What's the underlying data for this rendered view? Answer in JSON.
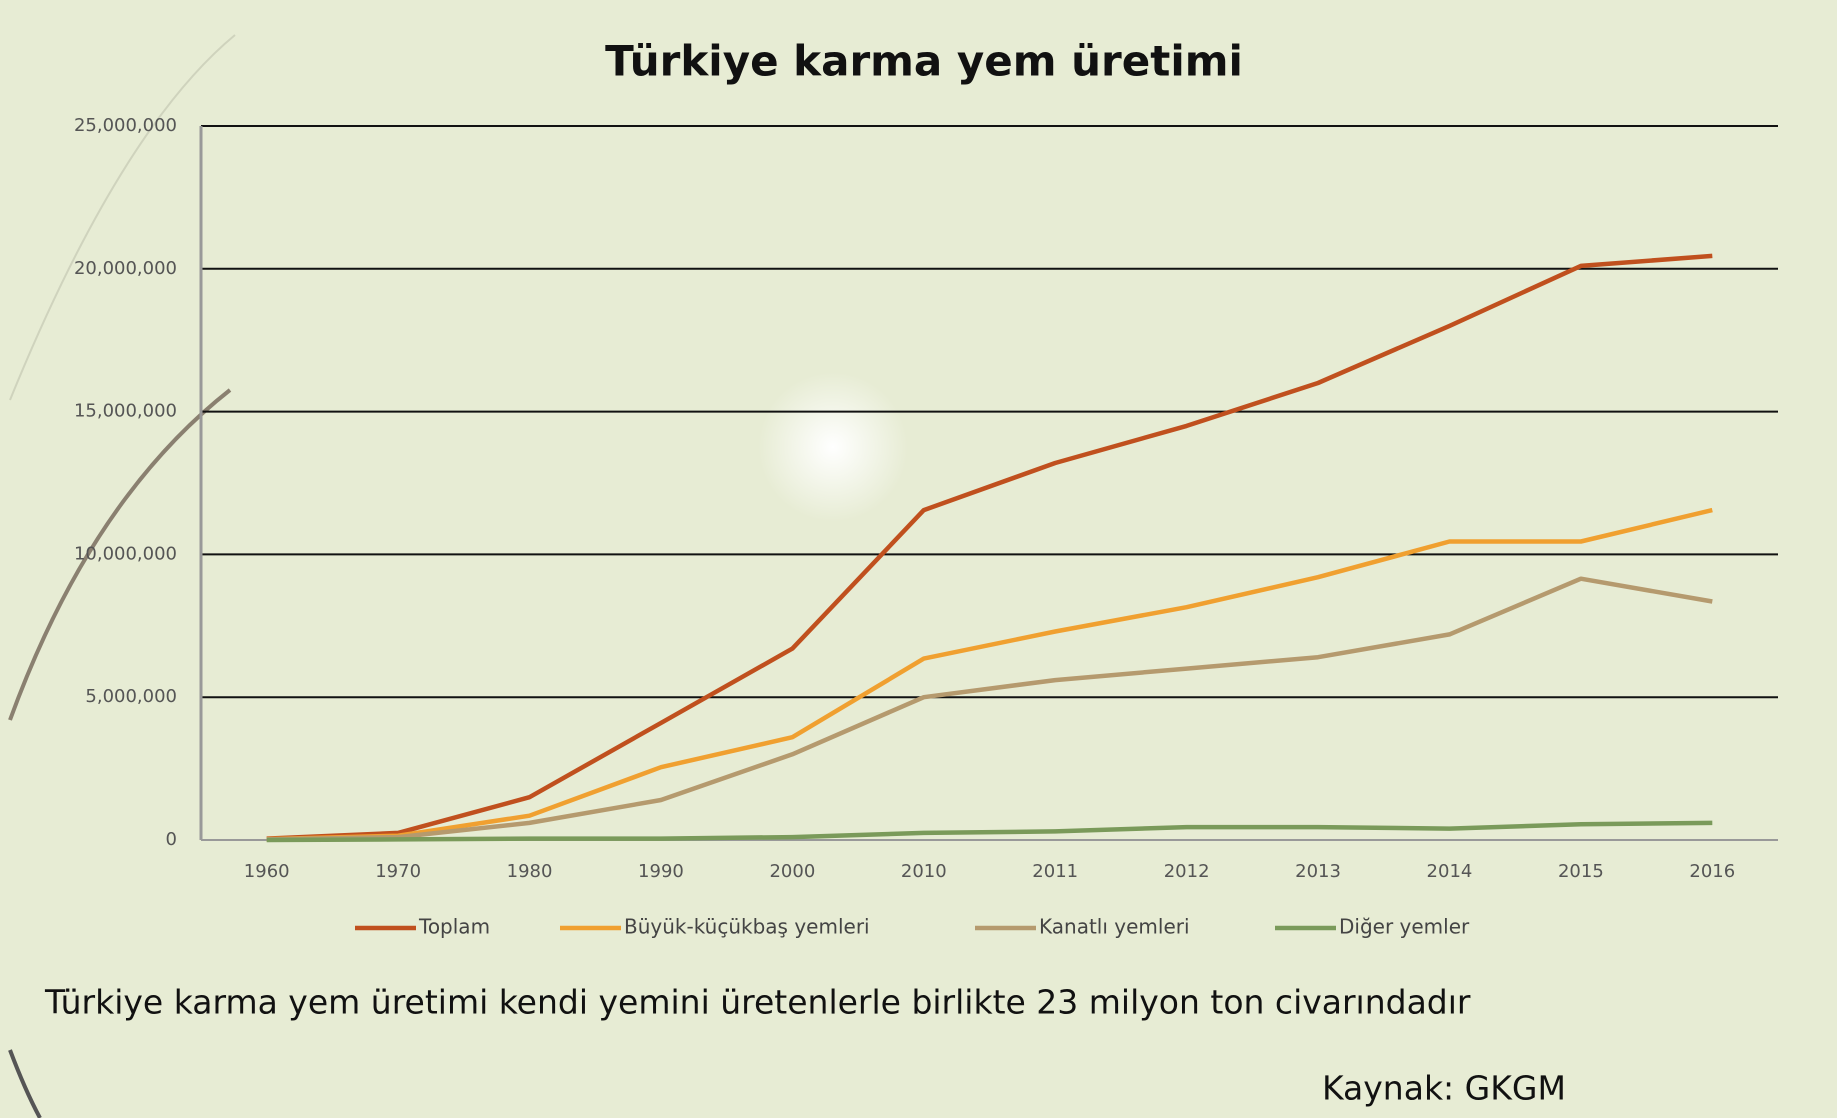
{
  "chart_data": {
    "type": "line",
    "title": "Türkiye karma yem üretimi",
    "categories": [
      "1960",
      "1970",
      "1980",
      "1990",
      "2000",
      "2010",
      "2011",
      "2012",
      "2013",
      "2014",
      "2015",
      "2016"
    ],
    "series": [
      {
        "name": "Toplam",
        "color": "#c0501e",
        "values": [
          50000,
          250000,
          1500000,
          4100000,
          6700000,
          11550000,
          13200000,
          14500000,
          16000000,
          18000000,
          20100000,
          20450000
        ]
      },
      {
        "name": "Büyük-küçükbaş yemleri",
        "color": "#f0a030",
        "values": [
          30000,
          150000,
          850000,
          2550000,
          3600000,
          6350000,
          7300000,
          8150000,
          9200000,
          10450000,
          10450000,
          11550000
        ]
      },
      {
        "name": "Kanatlı yemleri",
        "color": "#b59a6e",
        "values": [
          20000,
          100000,
          600000,
          1400000,
          3000000,
          5000000,
          5600000,
          6000000,
          6400000,
          7200000,
          9150000,
          8350000
        ]
      },
      {
        "name": "Diğer yemler",
        "color": "#7a9a5a",
        "values": [
          0,
          20000,
          50000,
          50000,
          100000,
          250000,
          300000,
          450000,
          450000,
          400000,
          550000,
          600000
        ]
      }
    ],
    "ylim": [
      0,
      25000000
    ],
    "yticks": [
      0,
      {
        "value": 5000000,
        "label": "5,000,000"
      },
      {
        "value": 10000000,
        "label": "10,000,000"
      },
      {
        "value": 15000000,
        "label": "15,000,000"
      },
      {
        "value": 20000000,
        "label": "20,000,000"
      },
      {
        "value": 25000000,
        "label": "25,000,000"
      }
    ],
    "grid": true,
    "legend": "bottom",
    "caption": "Türkiye karma yem üretimi kendi yemini üretenlerle birlikte 23 milyon ton civarındadır",
    "source": "Kaynak: GKGM"
  }
}
